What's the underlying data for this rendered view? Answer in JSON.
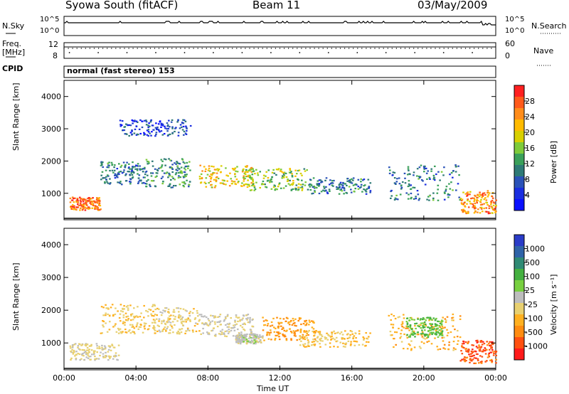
{
  "header": {
    "title": "Syowa South (fitACF)",
    "beam": "Beam 11",
    "date": "03/May/2009"
  },
  "strip": {
    "nsky_label": "N.Sky",
    "nsky_ticks": [
      "10^5",
      "10^0"
    ],
    "nsearch_label": "N.Search",
    "nsearch_ticks": [
      "10^5",
      "10^0"
    ],
    "freq_label": "Freq.",
    "freq_unit": "[MHz]",
    "freq_ticks": [
      "12",
      "8"
    ],
    "nave_label": "Nave",
    "nave_ticks": [
      "60",
      "0"
    ],
    "cpid_label": "CPID",
    "cpid_text": "normal (fast stereo) 153"
  },
  "colorbars": {
    "power": {
      "label": "Power [dB]",
      "ticks": [
        "28",
        "24",
        "20",
        "16",
        "12",
        "8",
        "4"
      ],
      "colors": [
        "#ff2020",
        "#ff5a1a",
        "#ff8c1a",
        "#ffbb00",
        "#d8d000",
        "#7ecb3a",
        "#3aa05a",
        "#2e7a76",
        "#2a52b8",
        "#1a2ee0",
        "#0a10ff"
      ]
    },
    "velocity": {
      "label": "Velocity [m s⁻¹]",
      "ticks": [
        "1000",
        "500",
        "100",
        "25",
        "-25",
        "-100",
        "-500",
        "-1000"
      ],
      "colors": [
        "#2a3cc8",
        "#2f63a8",
        "#2f8a74",
        "#44b040",
        "#78d040",
        "#bdbdbd",
        "#e8d070",
        "#ffb020",
        "#ff8c10",
        "#ff5010",
        "#ff1a1a"
      ]
    }
  },
  "axes": {
    "ylabel": "Slant Range [km]",
    "xlabel": "Time UT",
    "yticks": [
      "4000",
      "3000",
      "2000",
      "1000"
    ],
    "xticks": [
      "00:00",
      "04:00",
      "08:00",
      "12:00",
      "16:00",
      "20:00",
      "00:00"
    ]
  },
  "chart_data": [
    {
      "type": "heatmap",
      "panel": "power",
      "xlabel": "Time UT",
      "ylabel": "Slant Range [km]",
      "ylim": [
        180,
        4500
      ],
      "xlim": [
        0,
        24
      ],
      "colorbar_label": "Power [dB]",
      "echo_regions": [
        {
          "t0": 0.3,
          "t1": 2.0,
          "r0": 500,
          "r1": 900,
          "level": 26
        },
        {
          "t0": 2.0,
          "t1": 4.5,
          "r0": 1300,
          "r1": 2000,
          "level": 10
        },
        {
          "t0": 4.5,
          "t1": 7.0,
          "r0": 1200,
          "r1": 2100,
          "level": 12
        },
        {
          "t0": 7.5,
          "t1": 10.5,
          "r0": 1200,
          "r1": 1900,
          "level": 20
        },
        {
          "t0": 10.0,
          "t1": 13.5,
          "r0": 1100,
          "r1": 1800,
          "level": 16
        },
        {
          "t0": 13.5,
          "t1": 17.0,
          "r0": 1000,
          "r1": 1500,
          "level": 10
        },
        {
          "t0": 18.0,
          "t1": 22.0,
          "r0": 800,
          "r1": 1900,
          "level": 10
        },
        {
          "t0": 22.0,
          "t1": 24.0,
          "r0": 400,
          "r1": 1100,
          "level": 24
        },
        {
          "t0": 3.0,
          "t1": 7.0,
          "r0": 2800,
          "r1": 3300,
          "level": 6
        }
      ]
    },
    {
      "type": "heatmap",
      "panel": "velocity",
      "xlabel": "Time UT",
      "ylabel": "Slant Range [km]",
      "ylim": [
        180,
        4500
      ],
      "xlim": [
        0,
        24
      ],
      "colorbar_label": "Velocity [m s⁻¹]",
      "echo_regions": [
        {
          "t0": 0.3,
          "t1": 3.0,
          "r0": 500,
          "r1": 1000,
          "level": -150
        },
        {
          "t0": 2.0,
          "t1": 5.0,
          "r0": 1300,
          "r1": 2200,
          "level": -300
        },
        {
          "t0": 5.0,
          "t1": 7.5,
          "r0": 1300,
          "r1": 2100,
          "level": -200
        },
        {
          "t0": 7.5,
          "t1": 10.5,
          "r0": 1200,
          "r1": 1900,
          "level": -100
        },
        {
          "t0": 9.5,
          "t1": 11.0,
          "r0": 1000,
          "r1": 1300,
          "level": 0
        },
        {
          "t0": 11.0,
          "t1": 14.0,
          "r0": 1100,
          "r1": 1800,
          "level": -500
        },
        {
          "t0": 13.0,
          "t1": 17.0,
          "r0": 900,
          "r1": 1400,
          "level": -300
        },
        {
          "t0": 18.0,
          "t1": 22.0,
          "r0": 800,
          "r1": 1900,
          "level": -400
        },
        {
          "t0": 19.0,
          "t1": 21.0,
          "r0": 1200,
          "r1": 1800,
          "level": 300
        },
        {
          "t0": 22.0,
          "t1": 24.0,
          "r0": 400,
          "r1": 1100,
          "level": -800
        }
      ]
    }
  ]
}
